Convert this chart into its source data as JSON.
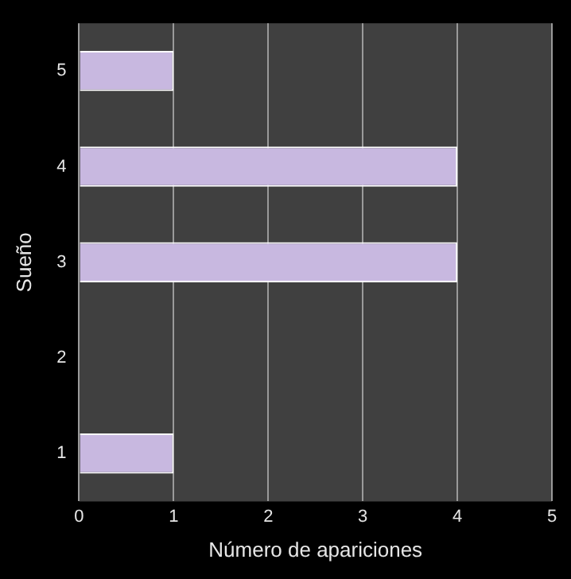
{
  "chart_data": {
    "type": "bar",
    "orientation": "horizontal",
    "xlabel": "Número de apariciones",
    "ylabel": "Sueño",
    "categories": [
      "5",
      "4",
      "3",
      "2",
      "1"
    ],
    "values": [
      1,
      4,
      4,
      0,
      1
    ],
    "color": "#c8b8e0",
    "xlim": [
      0,
      5
    ],
    "xticks": [
      0,
      1,
      2,
      3,
      4,
      5
    ],
    "grid": "x",
    "legend": false
  }
}
